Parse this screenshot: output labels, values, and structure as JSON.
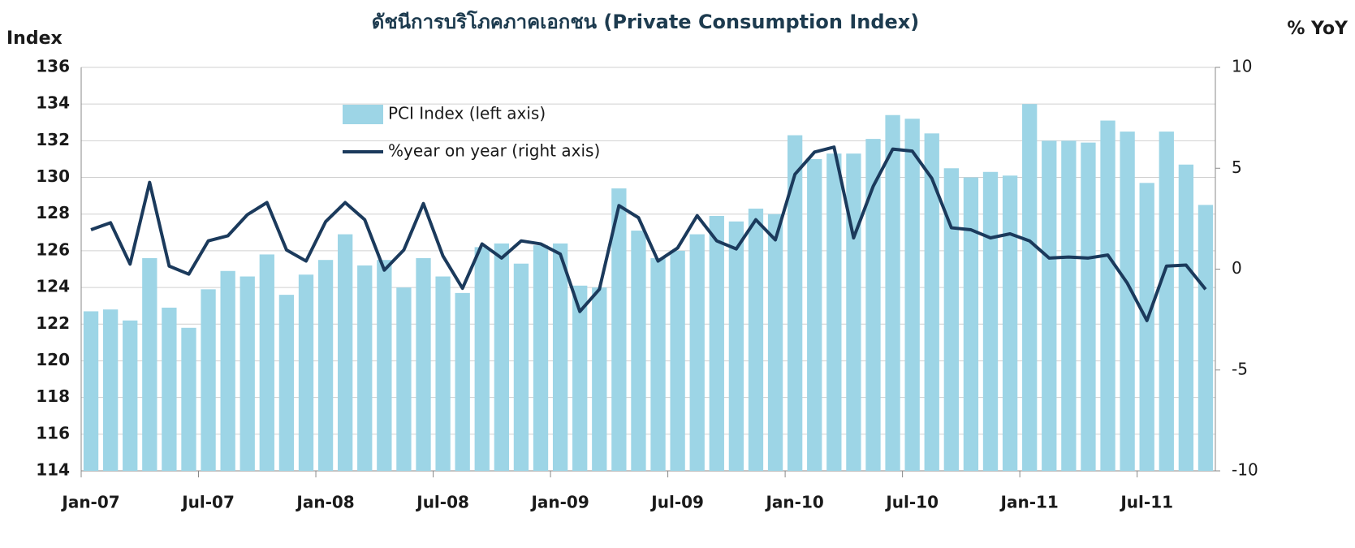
{
  "chart_data": {
    "type": "bar_line",
    "title": "ดัชนีการบริโภคภาคเอกชน (Private Consumption Index)",
    "y_label": "Index",
    "y2_label": "% YoY",
    "categories": [
      "Jan-07",
      null,
      null,
      null,
      null,
      null,
      "Jul-07",
      null,
      null,
      null,
      null,
      null,
      "Jan-08",
      null,
      null,
      null,
      null,
      null,
      "Jul-08",
      null,
      null,
      null,
      null,
      null,
      "Jan-09",
      null,
      null,
      null,
      null,
      null,
      "Jul-09",
      null,
      null,
      null,
      null,
      null,
      "Jan-10",
      null,
      null,
      null,
      null,
      null,
      "Jul-10",
      null,
      null,
      null,
      null,
      null,
      "Jan-11",
      null,
      null,
      null,
      null,
      null,
      "Jul-11",
      null,
      null,
      null
    ],
    "series": [
      {
        "name": "PCI Index (left axis)",
        "color": "#9dd5e6",
        "kind": "bar",
        "values": [
          122.7,
          122.8,
          122.2,
          125.6,
          122.9,
          121.8,
          123.9,
          124.9,
          124.6,
          125.8,
          123.6,
          124.7,
          125.5,
          126.9,
          125.2,
          125.5,
          124.0,
          125.6,
          124.6,
          123.7,
          126.2,
          126.4,
          125.3,
          126.3,
          126.4,
          124.1,
          124.0,
          129.4,
          127.1,
          125.6,
          126.0,
          126.9,
          127.9,
          127.6,
          128.3,
          128.0,
          132.3,
          131.0,
          131.3,
          131.3,
          132.1,
          133.4,
          133.2,
          132.4,
          130.5,
          130.0,
          130.3,
          130.1,
          134.0,
          132.0,
          132.0,
          131.9,
          133.1,
          132.5,
          129.7,
          132.5,
          130.7,
          128.5
        ]
      },
      {
        "name": "%year on year (right axis)",
        "color": "#1b3a5c",
        "kind": "line",
        "axis": "y2",
        "values": [
          1.95,
          2.3,
          0.25,
          4.3,
          0.15,
          -0.25,
          1.4,
          1.65,
          2.7,
          3.3,
          0.95,
          0.4,
          2.35,
          3.3,
          2.45,
          -0.05,
          0.95,
          3.25,
          0.65,
          -0.95,
          1.25,
          0.55,
          1.4,
          1.25,
          0.75,
          -2.1,
          -1.0,
          3.15,
          2.55,
          0.4,
          1.05,
          2.65,
          1.4,
          1.0,
          2.45,
          1.45,
          4.7,
          5.8,
          6.05,
          1.55,
          4.1,
          5.95,
          5.85,
          4.5,
          2.05,
          1.95,
          1.55,
          1.75,
          1.4,
          0.55,
          0.6,
          0.55,
          0.7,
          -0.7,
          -2.55,
          0.15,
          0.2,
          -1.0
        ]
      }
    ],
    "ylim": [
      114,
      136
    ],
    "yticks": [
      114,
      116,
      118,
      120,
      122,
      124,
      126,
      128,
      130,
      132,
      134,
      136
    ],
    "y2lim": [
      -10,
      10
    ],
    "y2ticks": [
      -10,
      -5,
      0,
      5,
      10
    ],
    "grid": true
  }
}
